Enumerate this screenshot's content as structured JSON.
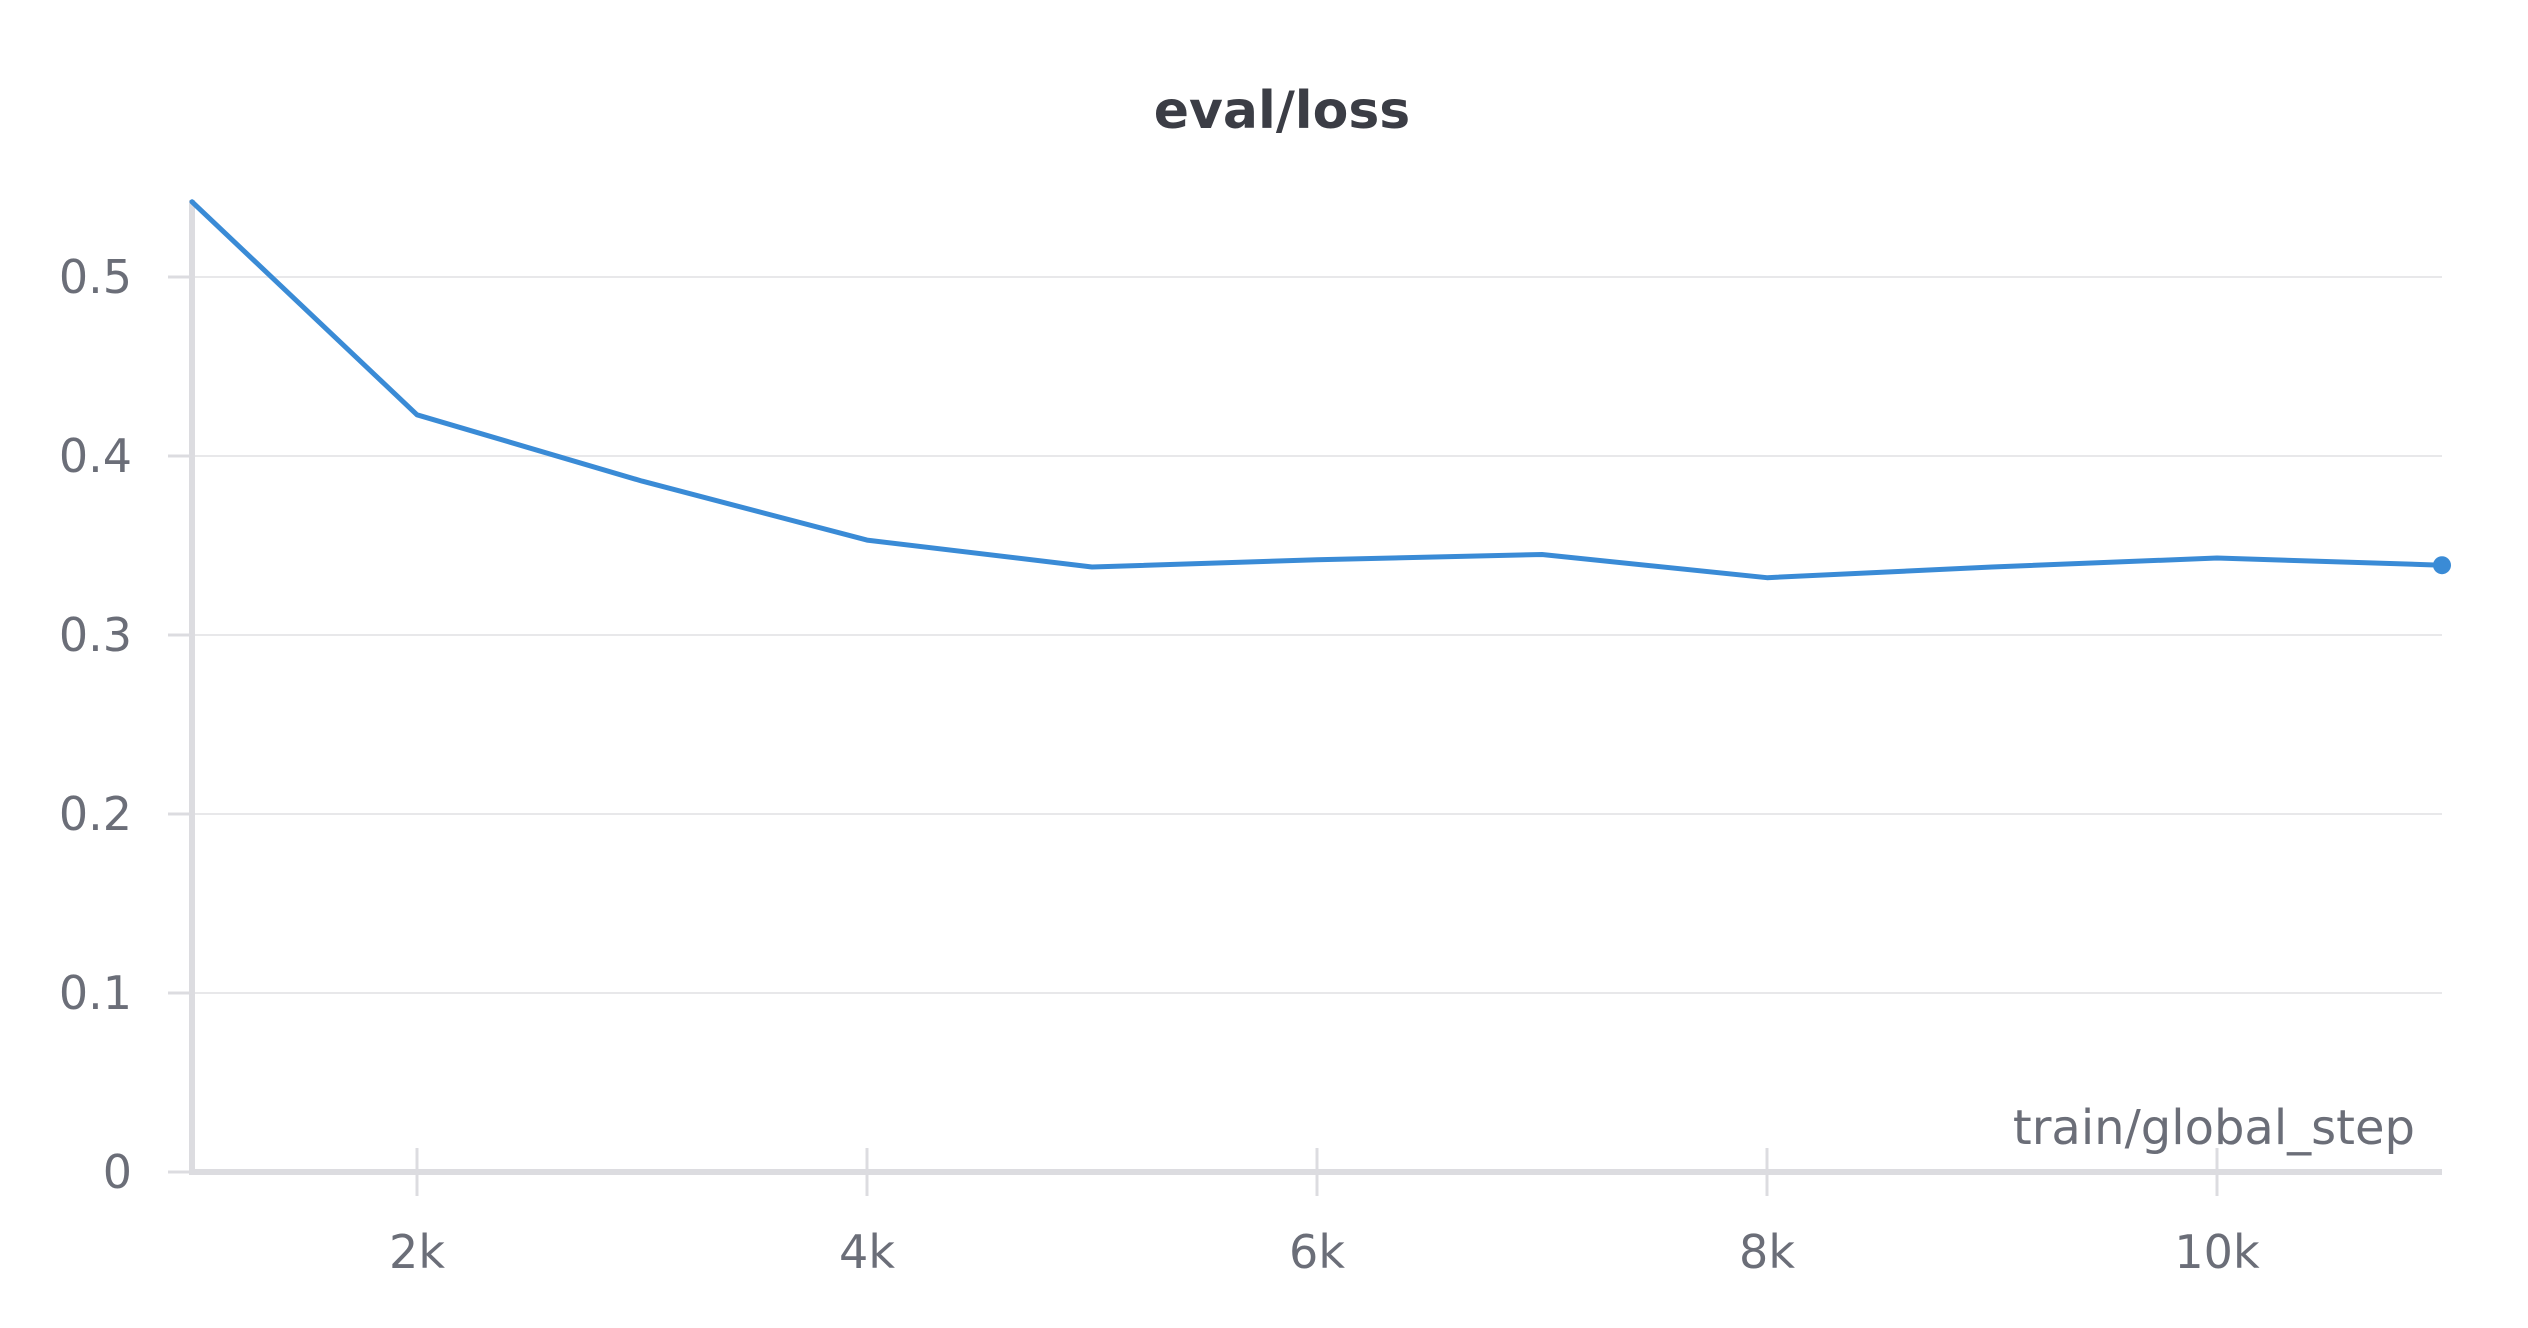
{
  "chart_data": {
    "type": "line",
    "title": "eval/loss",
    "xlabel": "train/global_step",
    "ylabel": "",
    "x": [
      1000,
      2000,
      3000,
      4000,
      5000,
      6000,
      7000,
      8000,
      9000,
      10000,
      11000
    ],
    "series": [
      {
        "values": [
          0.542,
          0.423,
          0.386,
          0.353,
          0.338,
          0.342,
          0.345,
          0.332,
          0.338,
          0.343,
          0.339
        ],
        "color": "#3a8bd6"
      }
    ],
    "xlim": [
      1000,
      11000
    ],
    "ylim": [
      0,
      0.55
    ],
    "x_ticks": [
      2000,
      4000,
      6000,
      8000,
      10000
    ],
    "x_tick_labels": [
      "2k",
      "4k",
      "6k",
      "8k",
      "10k"
    ],
    "y_ticks": [
      0,
      0.1,
      0.2,
      0.3,
      0.4,
      0.5
    ],
    "y_tick_labels": [
      "0",
      "0.1",
      "0.2",
      "0.3",
      "0.4",
      "0.5"
    ],
    "grid": true,
    "legend": "none",
    "last_point_marker": true
  }
}
